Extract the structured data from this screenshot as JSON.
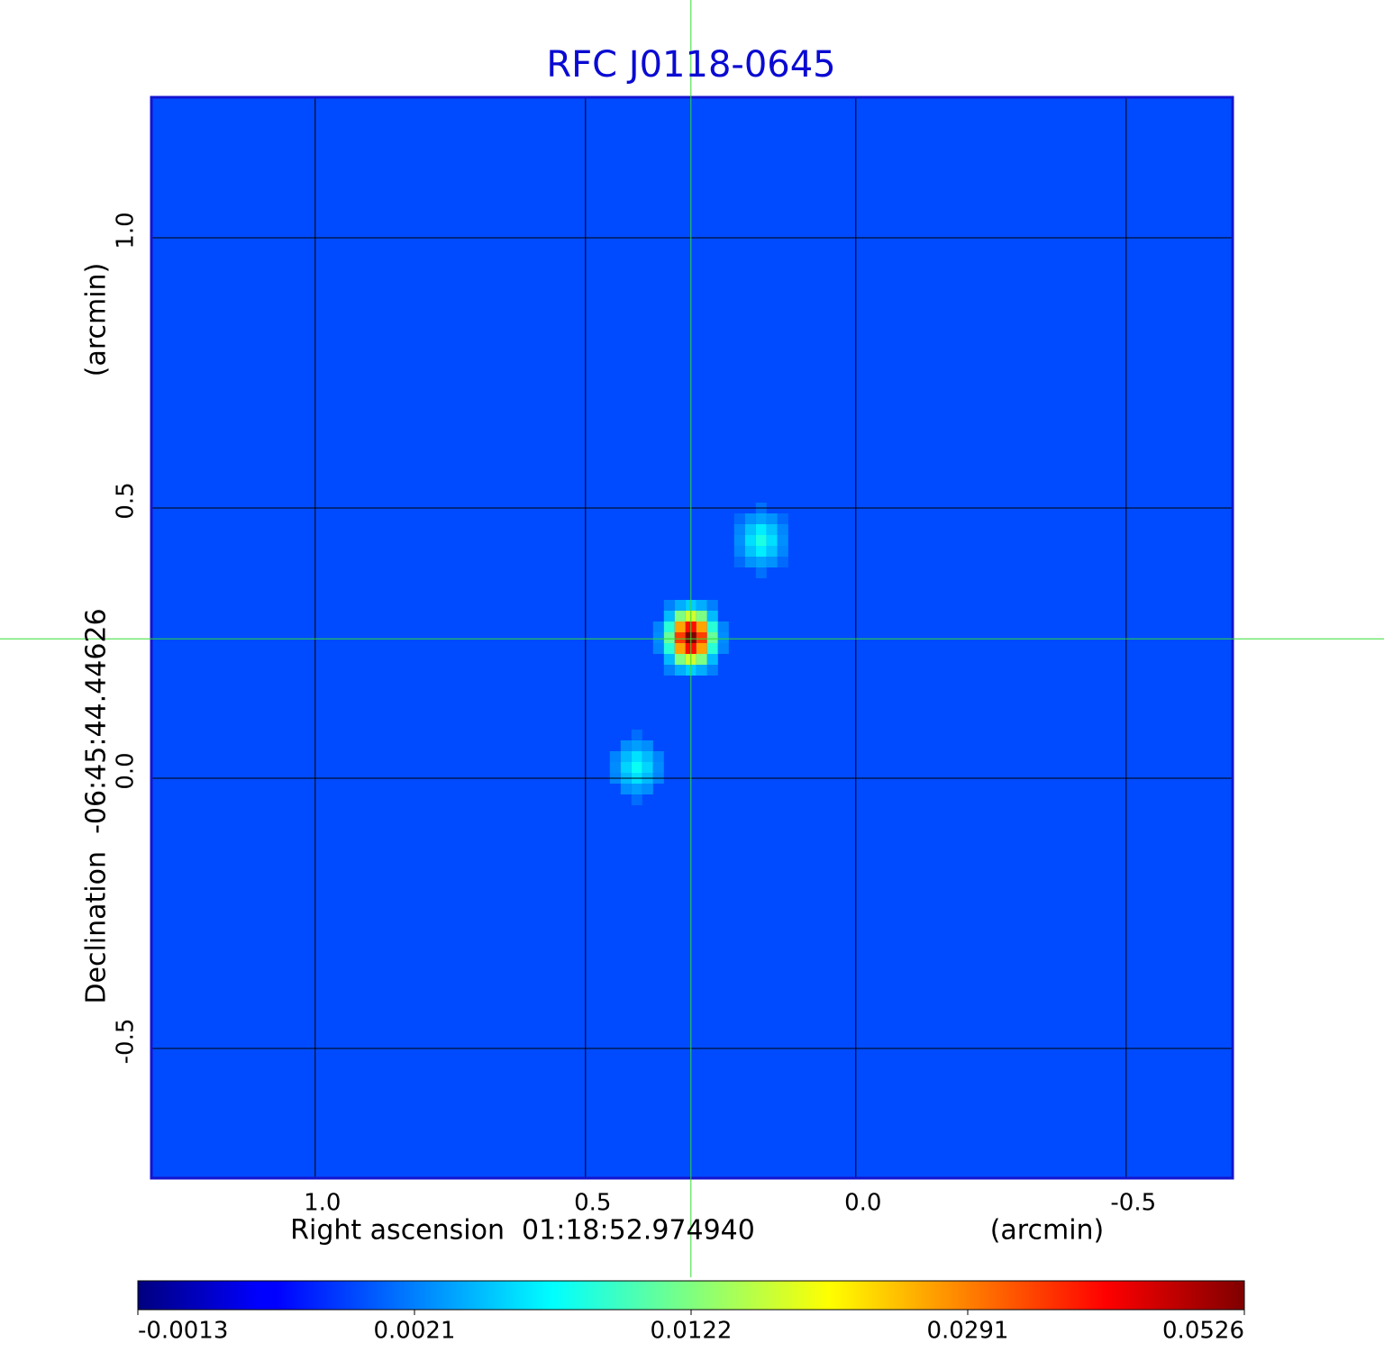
{
  "chart_data": {
    "type": "image",
    "title": "RFC J0118-0645",
    "x_label": "Right ascension  01:18:52.974940",
    "x_unit": "(arcmin)",
    "y_label": "Declination  -06:45:44.44626",
    "y_unit": "(arcmin)",
    "xlim": [
      1.303,
      -0.697
    ],
    "ylim": [
      -0.74,
      1.26
    ],
    "xticks": [
      {
        "value": 1,
        "label": "1.0"
      },
      {
        "value": 0.5,
        "label": "0.5"
      },
      {
        "value": 0,
        "label": "0.0"
      },
      {
        "value": -0.5,
        "label": "-0.5"
      }
    ],
    "yticks": [
      {
        "value": 1,
        "label": "1.0"
      },
      {
        "value": 0.5,
        "label": "0.5"
      },
      {
        "value": 0,
        "label": "0.0"
      },
      {
        "value": -0.5,
        "label": "-0.5"
      }
    ],
    "grid": true,
    "background": 0.0014,
    "sources": [
      {
        "x": 0.305,
        "y": 0.26,
        "peak": 0.0526
      },
      {
        "x": 0.175,
        "y": 0.44,
        "peak": 0.0082
      },
      {
        "x": 0.405,
        "y": 0.02,
        "peak": 0.0075
      }
    ],
    "crosshair": {
      "x": 0.305,
      "y": 0.258
    },
    "colorbar_ticks": [
      -0.0013,
      0.0021,
      0.0122,
      0.0291,
      0.0526
    ]
  }
}
